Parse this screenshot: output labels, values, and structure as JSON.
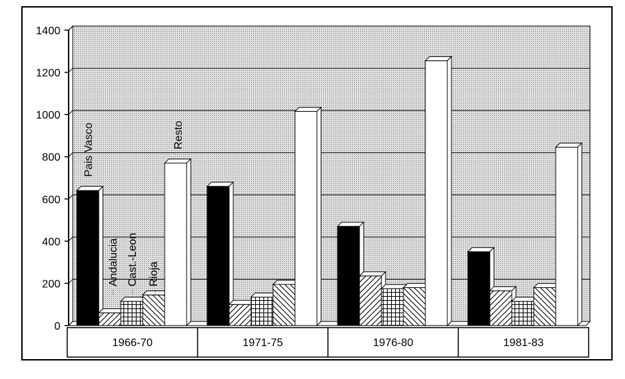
{
  "chart_data": {
    "type": "bar",
    "style": "3d-clustered",
    "categories": [
      "1966-70",
      "1971-75",
      "1976-80",
      "1981-83"
    ],
    "series": [
      {
        "name": "Pais Vasco",
        "values": [
          640,
          660,
          470,
          350
        ],
        "pattern": "solid-black"
      },
      {
        "name": "Andalucia",
        "values": [
          60,
          100,
          235,
          165
        ],
        "pattern": "diagonal-hatch"
      },
      {
        "name": "Cast.-Leon",
        "values": [
          115,
          135,
          175,
          115
        ],
        "pattern": "grid-hatch"
      },
      {
        "name": "Rioja",
        "values": [
          145,
          195,
          180,
          180
        ],
        "pattern": "back-diagonal-hatch"
      },
      {
        "name": "Resto",
        "values": [
          770,
          1015,
          1255,
          845
        ],
        "pattern": "white"
      }
    ],
    "ylim": [
      0,
      1400
    ],
    "yticks": [
      "0",
      "200",
      "400",
      "600",
      "800",
      "1000",
      "1200",
      "1400"
    ],
    "grid": true,
    "legend": "labels-on-first-group",
    "colors": {
      "background_dotted": "#c9c9c9",
      "bar_dark": "#000000",
      "bar_light": "#ffffff"
    }
  }
}
